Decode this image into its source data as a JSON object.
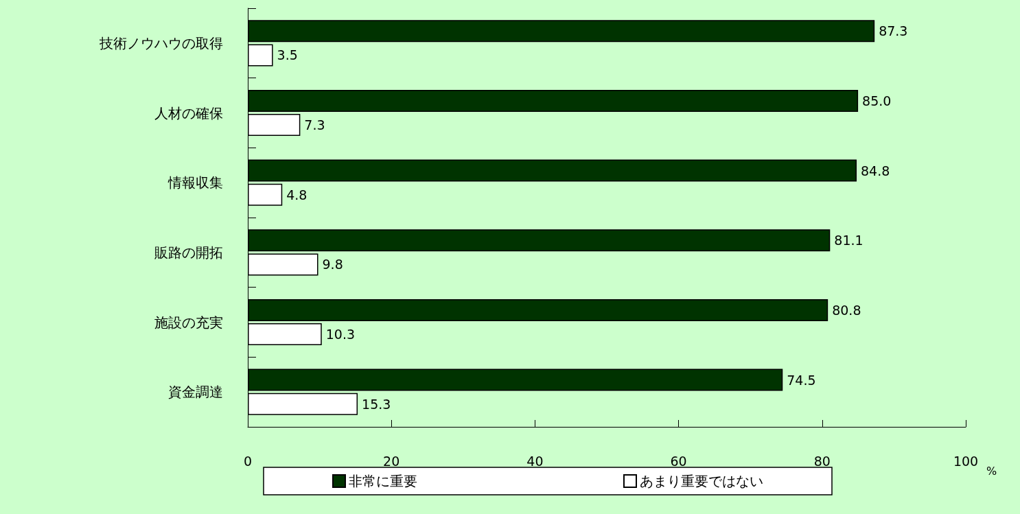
{
  "chart_data": {
    "type": "bar",
    "orientation": "horizontal",
    "xlabel": "%",
    "categories": [
      "技術ノウハウの取得",
      "人材の確保",
      "情報収集",
      "販路の開拓",
      "施設の充実",
      "資金調達"
    ],
    "series": [
      {
        "name": "非常に重要",
        "color": "#003300",
        "values": [
          87.3,
          85.0,
          84.8,
          81.1,
          80.8,
          74.5
        ]
      },
      {
        "name": "あまり重要ではない",
        "color": "#ffffff",
        "values": [
          3.5,
          7.3,
          4.8,
          9.8,
          10.3,
          15.3
        ]
      }
    ],
    "value_labels": [
      [
        "87.3",
        "85.0",
        "84.8",
        "81.1",
        "80.8",
        "74.5"
      ],
      [
        "3.5",
        "7.3",
        "4.8",
        "9.8",
        "10.3",
        "15.3"
      ]
    ],
    "xlim": [
      0,
      100
    ],
    "xticks": [
      0,
      20,
      40,
      60,
      80,
      100
    ],
    "grid": false,
    "legend": "bottom"
  }
}
